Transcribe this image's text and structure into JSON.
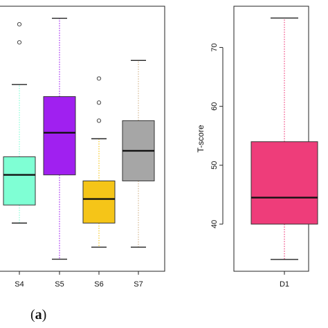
{
  "panel_label": {
    "open": "(",
    "letter": "a",
    "close": ")"
  },
  "chart_data": [
    {
      "type": "box",
      "title": "",
      "xlabel": "",
      "ylabel": "",
      "ylim": [
        33,
        77
      ],
      "categories": [
        "S4",
        "S5",
        "S6",
        "S7"
      ],
      "boxes": [
        {
          "name": "S4",
          "color": "#7FFFD4",
          "whisker_color": "#7FFFD4",
          "min": 41,
          "q1": 44,
          "median": 49,
          "q3": 52,
          "max": 64,
          "outliers": [
            71,
            74
          ]
        },
        {
          "name": "S5",
          "color": "#A020F0",
          "whisker_color": "#A020F0",
          "min": 35,
          "q1": 49,
          "median": 56,
          "q3": 62,
          "max": 75,
          "outliers": []
        },
        {
          "name": "S6",
          "color": "#F5C518",
          "whisker_color": "#F5C518",
          "min": 37,
          "q1": 41,
          "median": 45,
          "q3": 48,
          "max": 55,
          "outliers": [
            58,
            61,
            65
          ]
        },
        {
          "name": "S7",
          "color": "#A6A6A6",
          "whisker_color": "#D2B48C",
          "min": 37,
          "q1": 48,
          "median": 53,
          "q3": 58,
          "max": 68,
          "outliers": []
        }
      ],
      "grid": false
    },
    {
      "type": "box",
      "title": "",
      "xlabel": "",
      "ylabel": "T-score",
      "ylim": [
        32,
        77
      ],
      "yticks": [
        40,
        50,
        60,
        70
      ],
      "categories": [
        "D1"
      ],
      "boxes": [
        {
          "name": "D1",
          "color": "#EE3D7A",
          "whisker_color": "#EE3D7A",
          "min": 34,
          "q1": 40,
          "median": 44.5,
          "q3": 54,
          "max": 75,
          "outliers": []
        }
      ],
      "grid": false
    }
  ]
}
